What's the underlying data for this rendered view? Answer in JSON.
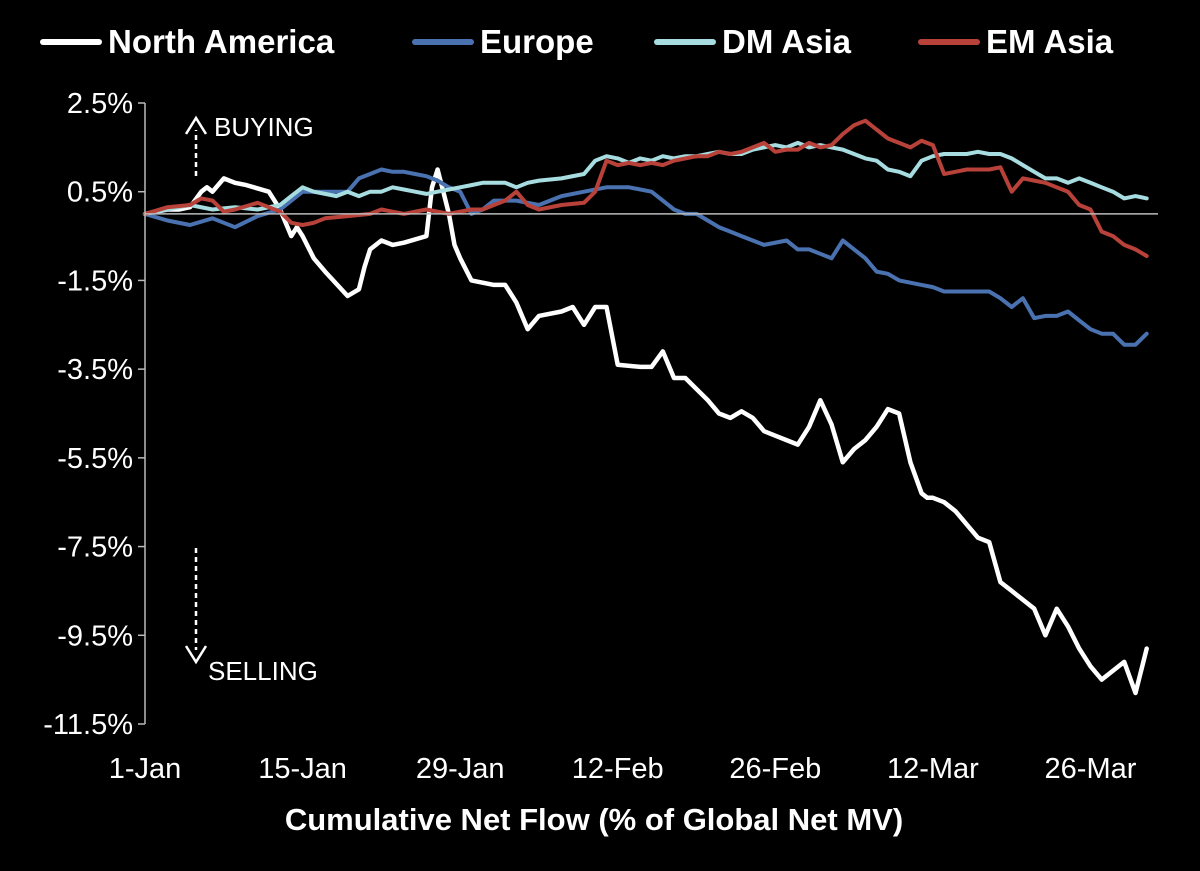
{
  "chart_data": {
    "type": "line",
    "title": "",
    "xlabel": "Cumulative Net Flow (% of Global Net MV)",
    "ylabel": "",
    "ylim": [
      -11.5,
      2.5
    ],
    "yticks": [
      "2.5%",
      "0.5%",
      "-1.5%",
      "-3.5%",
      "-5.5%",
      "-7.5%",
      "-9.5%",
      "-11.5%"
    ],
    "ytick_values": [
      2.5,
      0.5,
      -1.5,
      -3.5,
      -5.5,
      -7.5,
      -9.5,
      -11.5
    ],
    "xticks": [
      "1-Jan",
      "15-Jan",
      "29-Jan",
      "12-Feb",
      "26-Feb",
      "12-Mar",
      "26-Mar"
    ],
    "xtick_days": [
      1,
      15,
      29,
      43,
      57,
      71,
      85
    ],
    "xlim": [
      1,
      91
    ],
    "legend_position": "top",
    "grid": false,
    "annotations": {
      "buying": "BUYING",
      "selling": "SELLING"
    },
    "series": [
      {
        "name": "North America",
        "color": "#ffffff",
        "x": [
          1,
          2,
          3,
          4,
          5,
          6,
          6.5,
          7,
          8,
          9,
          10,
          12,
          13,
          14,
          14.5,
          15,
          16,
          17,
          19,
          20,
          20.5,
          21,
          22,
          23,
          24,
          26,
          26.5,
          27,
          27.5,
          28,
          28.5,
          29,
          30,
          32,
          33,
          34,
          35,
          36,
          38,
          39,
          40,
          41,
          42,
          43,
          45,
          46,
          47,
          48,
          49,
          51,
          52,
          53,
          54,
          55,
          56,
          57,
          59,
          60,
          61,
          62,
          63,
          64,
          65,
          66,
          67,
          68,
          69,
          70,
          70.5,
          71,
          72,
          73,
          74,
          75,
          76,
          77,
          78,
          79,
          80,
          81,
          82,
          83,
          84,
          85,
          86,
          88,
          89,
          90
        ],
        "y": [
          0,
          0.05,
          0.1,
          0.1,
          0.15,
          0.5,
          0.6,
          0.5,
          0.8,
          0.7,
          0.65,
          0.5,
          0.1,
          -0.5,
          -0.3,
          -0.5,
          -1.0,
          -1.3,
          -1.85,
          -1.7,
          -1.2,
          -0.8,
          -0.6,
          -0.7,
          -0.65,
          -0.5,
          0.6,
          1.0,
          0.5,
          0.0,
          -0.7,
          -1.0,
          -1.5,
          -1.6,
          -1.6,
          -2.0,
          -2.6,
          -2.3,
          -2.2,
          -2.1,
          -2.5,
          -2.1,
          -2.1,
          -3.4,
          -3.45,
          -3.45,
          -3.1,
          -3.7,
          -3.7,
          -4.2,
          -4.5,
          -4.6,
          -4.45,
          -4.6,
          -4.9,
          -5.0,
          -5.2,
          -4.8,
          -4.2,
          -4.75,
          -5.6,
          -5.3,
          -5.1,
          -4.8,
          -4.4,
          -4.5,
          -5.6,
          -6.3,
          -6.4,
          -6.4,
          -6.5,
          -6.7,
          -7.0,
          -7.3,
          -7.4,
          -8.3,
          -8.5,
          -8.7,
          -8.9,
          -9.5,
          -8.9,
          -9.3,
          -9.8,
          -10.2,
          -10.5,
          -10.1,
          -10.8,
          -9.8
        ]
      },
      {
        "name": "Europe",
        "color": "#4a72b0",
        "x": [
          1,
          3,
          5,
          7,
          9,
          11,
          13,
          15,
          17,
          19,
          20,
          21,
          22,
          23,
          24,
          25,
          26,
          27,
          28,
          29,
          30,
          31,
          32,
          34,
          36,
          38,
          40,
          42,
          44,
          46,
          47,
          48,
          49,
          50,
          51,
          52,
          53,
          54,
          55,
          56,
          58,
          59,
          60,
          61,
          62,
          63,
          64,
          65,
          66,
          67,
          68,
          70,
          71,
          72,
          74,
          76,
          77,
          78,
          79,
          80,
          81,
          82,
          83,
          84,
          85,
          86,
          87,
          88,
          89,
          90
        ],
        "y": [
          0,
          -0.15,
          -0.25,
          -0.1,
          -0.3,
          -0.05,
          0.1,
          0.5,
          0.5,
          0.5,
          0.8,
          0.9,
          1.0,
          0.95,
          0.95,
          0.9,
          0.85,
          0.75,
          0.6,
          0.5,
          0.0,
          0.1,
          0.3,
          0.3,
          0.2,
          0.4,
          0.5,
          0.6,
          0.6,
          0.5,
          0.3,
          0.1,
          0.0,
          0.0,
          -0.15,
          -0.3,
          -0.4,
          -0.5,
          -0.6,
          -0.7,
          -0.6,
          -0.8,
          -0.8,
          -0.9,
          -1.0,
          -0.6,
          -0.8,
          -1.0,
          -1.3,
          -1.35,
          -1.5,
          -1.6,
          -1.65,
          -1.75,
          -1.75,
          -1.75,
          -1.9,
          -2.1,
          -1.9,
          -2.35,
          -2.3,
          -2.3,
          -2.2,
          -2.4,
          -2.6,
          -2.7,
          -2.7,
          -2.95,
          -2.95,
          -2.7
        ]
      },
      {
        "name": "DM Asia",
        "color": "#a7dde0",
        "x": [
          1,
          3,
          5,
          7,
          9,
          11,
          13,
          14,
          15,
          16,
          17,
          18,
          19,
          20,
          21,
          22,
          23,
          24,
          25,
          26,
          27,
          28,
          29,
          30,
          31,
          32,
          33,
          34,
          35,
          36,
          38,
          40,
          41,
          42,
          43,
          44,
          45,
          46,
          47,
          48,
          49,
          50,
          51,
          52,
          53,
          54,
          55,
          56,
          57,
          58,
          59,
          60,
          61,
          62,
          63,
          64,
          65,
          66,
          67,
          68,
          69,
          70,
          71,
          72,
          73,
          74,
          75,
          76,
          77,
          78,
          79,
          80,
          81,
          82,
          83,
          84,
          85,
          86,
          87,
          88,
          89,
          90
        ],
        "y": [
          0,
          0.1,
          0.2,
          0.1,
          0.15,
          0.1,
          0.2,
          0.4,
          0.6,
          0.5,
          0.45,
          0.4,
          0.5,
          0.4,
          0.5,
          0.5,
          0.6,
          0.55,
          0.5,
          0.45,
          0.5,
          0.55,
          0.6,
          0.65,
          0.7,
          0.7,
          0.7,
          0.6,
          0.7,
          0.75,
          0.8,
          0.9,
          1.2,
          1.3,
          1.25,
          1.15,
          1.25,
          1.2,
          1.3,
          1.25,
          1.3,
          1.3,
          1.35,
          1.4,
          1.35,
          1.35,
          1.45,
          1.5,
          1.55,
          1.5,
          1.6,
          1.5,
          1.55,
          1.5,
          1.45,
          1.35,
          1.25,
          1.2,
          1.0,
          0.95,
          0.85,
          1.2,
          1.3,
          1.35,
          1.35,
          1.35,
          1.4,
          1.35,
          1.35,
          1.25,
          1.1,
          0.95,
          0.8,
          0.8,
          0.7,
          0.8,
          0.7,
          0.6,
          0.5,
          0.35,
          0.4,
          0.35
        ]
      },
      {
        "name": "EM Asia",
        "color": "#b8423a",
        "x": [
          1,
          3,
          5,
          6,
          7,
          8,
          9,
          11,
          12,
          13,
          14,
          15,
          16,
          17,
          19,
          21,
          22,
          23,
          24,
          25,
          26,
          28,
          30,
          31,
          32,
          33,
          34,
          35,
          36,
          38,
          40,
          41,
          42,
          43,
          44,
          45,
          46,
          47,
          48,
          49,
          50,
          51,
          52,
          53,
          54,
          55,
          56,
          57,
          58,
          59,
          60,
          61,
          62,
          63,
          64,
          65,
          66,
          67,
          68,
          69,
          70,
          71,
          72,
          73,
          74,
          75,
          76,
          77,
          78,
          79,
          80,
          81,
          82,
          83,
          84,
          85,
          86,
          87,
          88,
          89,
          90
        ],
        "y": [
          0,
          0.15,
          0.2,
          0.35,
          0.3,
          0.05,
          0.1,
          0.25,
          0.15,
          0.05,
          -0.2,
          -0.25,
          -0.2,
          -0.1,
          -0.05,
          0.0,
          0.1,
          0.05,
          0.0,
          0.05,
          0.1,
          0.0,
          0.1,
          0.1,
          0.2,
          0.3,
          0.5,
          0.2,
          0.1,
          0.2,
          0.25,
          0.5,
          1.2,
          1.1,
          1.15,
          1.1,
          1.15,
          1.1,
          1.2,
          1.25,
          1.3,
          1.3,
          1.4,
          1.35,
          1.4,
          1.5,
          1.6,
          1.4,
          1.45,
          1.45,
          1.6,
          1.5,
          1.55,
          1.8,
          2.0,
          2.1,
          1.9,
          1.7,
          1.6,
          1.5,
          1.65,
          1.55,
          0.9,
          0.95,
          1.0,
          1.0,
          1.0,
          1.05,
          0.5,
          0.8,
          0.75,
          0.7,
          0.6,
          0.5,
          0.2,
          0.1,
          -0.4,
          -0.5,
          -0.7,
          -0.8,
          -0.95
        ]
      }
    ]
  }
}
